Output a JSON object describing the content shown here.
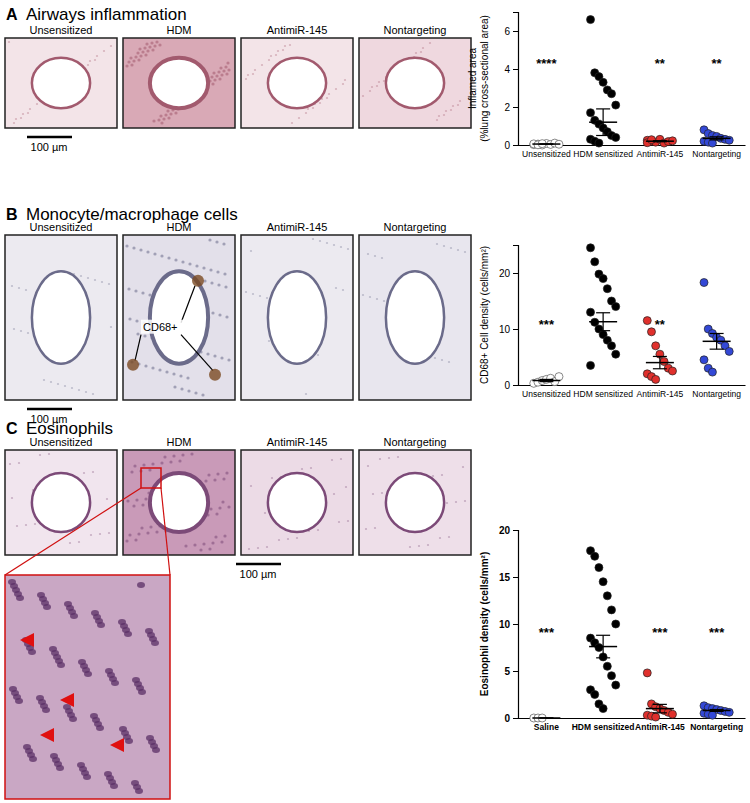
{
  "panels": [
    {
      "letter": "A",
      "title": "Airways inflammation",
      "image_labels": [
        "Unsensitized",
        "HDM",
        "AntimiR-145",
        "Nontargeting"
      ],
      "scale_bar": "100 µm"
    },
    {
      "letter": "B",
      "title": "Monocyte/macrophage cells",
      "image_labels": [
        "Unsensitized",
        "HDM",
        "AntimiR-145",
        "Nontargeting"
      ],
      "scale_bar": "100 µm",
      "annotation": "CD68+"
    },
    {
      "letter": "C",
      "title": "Eosinophils",
      "image_labels": [
        "Unsensitized",
        "HDM",
        "AntimiR-145",
        "Nontargeting"
      ],
      "scale_bar": "100 µm"
    }
  ],
  "chart_data": [
    {
      "type": "scatter",
      "ylabel": [
        "Inflamed area",
        "(%lung cross-sectional area)"
      ],
      "categories": [
        "Unsensitized",
        "HDM sensitized",
        "AntimiR-145",
        "Nontargeting"
      ],
      "values": [
        [
          0.02,
          0.05,
          0.0,
          0.08,
          0.03,
          0.1,
          0.04,
          0.06,
          0.01,
          0.07
        ],
        [
          6.6,
          3.8,
          3.6,
          3.3,
          2.9,
          2.7,
          2.1,
          1.7,
          1.3,
          1.1,
          0.9,
          0.7,
          0.5,
          0.4,
          0.3,
          0.2,
          0.1
        ],
        [
          0.25,
          0.2,
          0.15,
          0.3,
          0.1,
          0.18,
          0.22,
          0.12,
          0.28
        ],
        [
          0.8,
          0.6,
          0.5,
          0.45,
          0.35,
          0.3,
          0.25,
          0.2,
          0.15,
          0.1
        ]
      ],
      "mean": [
        0.05,
        1.2,
        0.2,
        0.35
      ],
      "error": [
        0.01,
        0.7,
        0.03,
        0.08
      ],
      "significance": [
        "****",
        null,
        "**",
        "**"
      ],
      "colors": [
        "#ffffff",
        "#000000",
        "#e0302c",
        "#3348d6"
      ],
      "ylim": [
        0,
        7
      ],
      "yticks": [
        0,
        2,
        4,
        6
      ]
    },
    {
      "type": "scatter",
      "ylabel": "CD68+ Cell density (cells/mm²)",
      "categories": [
        "Unsensitized",
        "HDM sensitized",
        "AntimiR-145",
        "Nontargeting"
      ],
      "values": [
        [
          0.3,
          0.5,
          0.8,
          1.0,
          1.2,
          0.6,
          1.5
        ],
        [
          24.5,
          22.0,
          19.8,
          19.0,
          17.2,
          15.0,
          14.0,
          13.0,
          11.2,
          10.0,
          9.0,
          8.0,
          7.0,
          5.5,
          3.5
        ],
        [
          11.5,
          9.5,
          7.0,
          5.5,
          4.2,
          3.0,
          2.5,
          2.0,
          1.5,
          1.0
        ],
        [
          18.3,
          10.0,
          9.2,
          8.5,
          8.0,
          7.0,
          6.0,
          4.5,
          3.0,
          2.3
        ]
      ],
      "mean": [
        0.8,
        11.3,
        4.0,
        7.8
      ],
      "error": [
        0.2,
        1.6,
        1.1,
        1.4
      ],
      "significance": [
        "***",
        null,
        "**",
        null
      ],
      "colors": [
        "#ffffff",
        "#000000",
        "#e0302c",
        "#3348d6"
      ],
      "ylim": [
        0,
        25
      ],
      "yticks": [
        0,
        10,
        20
      ]
    },
    {
      "type": "scatter",
      "ylabel": "Eosinophil density (cells/mm²)",
      "categories": [
        "Saline",
        "HDM sensitized",
        "AntimiR-145",
        "Nontargeting"
      ],
      "values": [
        [
          0,
          0,
          0
        ],
        [
          17.8,
          17.2,
          16.0,
          14.5,
          13.0,
          11.5,
          10.0,
          8.5,
          8.0,
          7.5,
          6.5,
          5.5,
          4.5,
          3.5,
          3.0,
          2.5,
          1.5,
          1.0
        ],
        [
          4.8,
          1.5,
          1.2,
          1.0,
          0.8,
          0.6,
          0.4,
          0.3,
          0.2,
          0.1
        ],
        [
          1.3,
          1.1,
          1.0,
          0.9,
          0.8,
          0.7,
          0.6,
          0.5,
          0.4,
          0.3
        ]
      ],
      "mean": [
        0,
        7.6,
        1.0,
        0.8
      ],
      "error": [
        0,
        1.2,
        0.45,
        0.1
      ],
      "significance": [
        "***",
        null,
        "***",
        "***"
      ],
      "colors": [
        "#ffffff",
        "#000000",
        "#e0302c",
        "#3348d6"
      ],
      "ylim": [
        0,
        20
      ],
      "yticks": [
        0,
        5,
        10,
        15,
        20
      ]
    }
  ]
}
